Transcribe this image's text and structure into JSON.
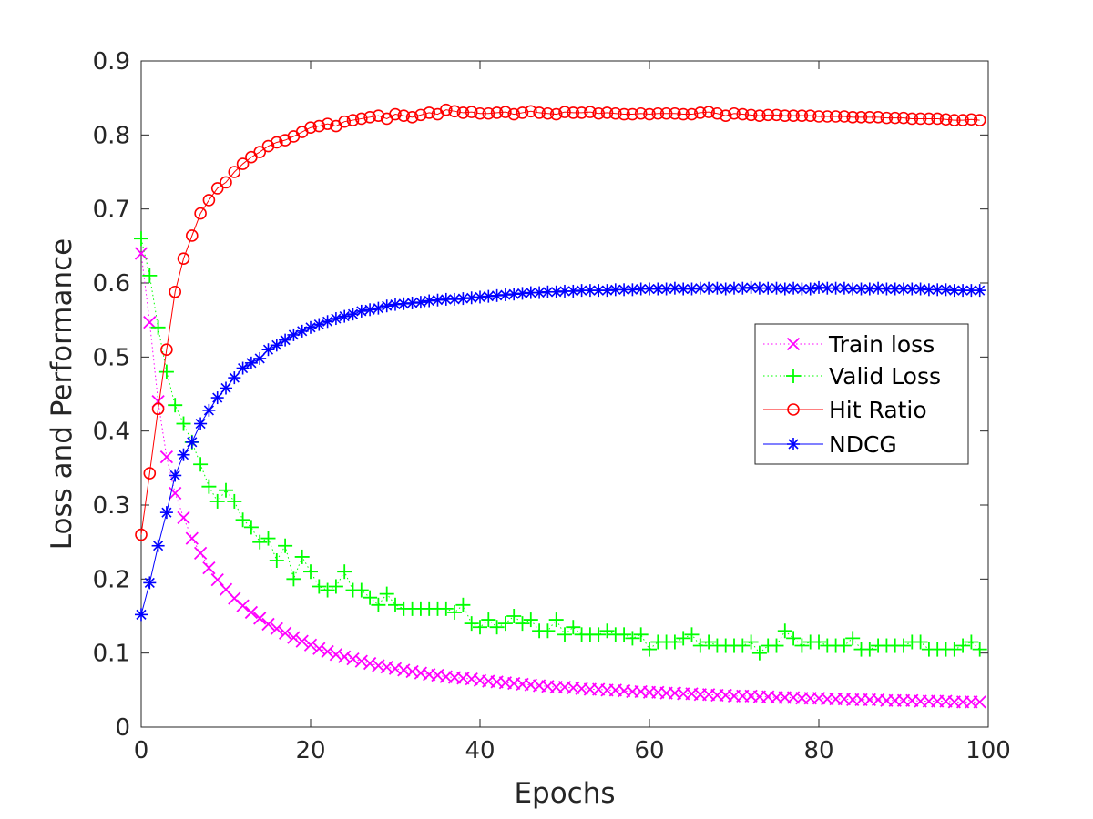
{
  "chart_data": {
    "type": "line",
    "title": "",
    "xlabel": "Epochs",
    "ylabel": "Loss and Performance",
    "xlim": [
      0,
      100
    ],
    "ylim": [
      0,
      0.9
    ],
    "xticks": [
      "0",
      "20",
      "40",
      "60",
      "80",
      "100"
    ],
    "yticks": [
      "0",
      "0.1",
      "0.2",
      "0.3",
      "0.4",
      "0.5",
      "0.6",
      "0.7",
      "0.8",
      "0.9"
    ],
    "grid": false,
    "legend_position": "right",
    "x": [
      0,
      1,
      2,
      3,
      4,
      5,
      6,
      7,
      8,
      9,
      10,
      11,
      12,
      13,
      14,
      15,
      16,
      17,
      18,
      19,
      20,
      21,
      22,
      23,
      24,
      25,
      26,
      27,
      28,
      29,
      30,
      31,
      32,
      33,
      34,
      35,
      36,
      37,
      38,
      39,
      40,
      41,
      42,
      43,
      44,
      45,
      46,
      47,
      48,
      49,
      50,
      51,
      52,
      53,
      54,
      55,
      56,
      57,
      58,
      59,
      60,
      61,
      62,
      63,
      64,
      65,
      66,
      67,
      68,
      69,
      70,
      71,
      72,
      73,
      74,
      75,
      76,
      77,
      78,
      79,
      80,
      81,
      82,
      83,
      84,
      85,
      86,
      87,
      88,
      89,
      90,
      91,
      92,
      93,
      94,
      95,
      96,
      97,
      98,
      99
    ],
    "series": [
      {
        "name": "Train loss",
        "color": "#ff00ff",
        "marker": "x",
        "line": "dotted",
        "values": [
          0.64,
          0.547,
          0.44,
          0.365,
          0.316,
          0.283,
          0.255,
          0.235,
          0.215,
          0.199,
          0.186,
          0.174,
          0.164,
          0.155,
          0.147,
          0.139,
          0.133,
          0.127,
          0.121,
          0.116,
          0.111,
          0.106,
          0.102,
          0.098,
          0.095,
          0.092,
          0.089,
          0.086,
          0.083,
          0.081,
          0.079,
          0.077,
          0.075,
          0.073,
          0.071,
          0.07,
          0.068,
          0.067,
          0.066,
          0.065,
          0.063,
          0.062,
          0.061,
          0.06,
          0.059,
          0.058,
          0.057,
          0.056,
          0.055,
          0.054,
          0.054,
          0.053,
          0.052,
          0.051,
          0.051,
          0.05,
          0.05,
          0.049,
          0.048,
          0.048,
          0.047,
          0.047,
          0.046,
          0.046,
          0.045,
          0.045,
          0.044,
          0.044,
          0.043,
          0.043,
          0.042,
          0.042,
          0.042,
          0.041,
          0.041,
          0.04,
          0.04,
          0.04,
          0.039,
          0.039,
          0.039,
          0.038,
          0.038,
          0.038,
          0.037,
          0.037,
          0.037,
          0.037,
          0.036,
          0.036,
          0.036,
          0.036,
          0.035,
          0.035,
          0.035,
          0.035,
          0.034,
          0.034,
          0.034,
          0.034
        ]
      },
      {
        "name": "Valid Loss",
        "color": "#00ff00",
        "marker": "+",
        "line": "dotted",
        "values": [
          0.66,
          0.61,
          0.54,
          0.48,
          0.435,
          0.41,
          0.385,
          0.355,
          0.325,
          0.305,
          0.32,
          0.305,
          0.28,
          0.27,
          0.25,
          0.255,
          0.225,
          0.245,
          0.2,
          0.23,
          0.21,
          0.19,
          0.185,
          0.19,
          0.21,
          0.185,
          0.185,
          0.175,
          0.165,
          0.18,
          0.165,
          0.16,
          0.16,
          0.16,
          0.16,
          0.16,
          0.16,
          0.155,
          0.165,
          0.14,
          0.135,
          0.145,
          0.135,
          0.14,
          0.15,
          0.14,
          0.145,
          0.13,
          0.13,
          0.145,
          0.125,
          0.135,
          0.125,
          0.125,
          0.125,
          0.13,
          0.125,
          0.125,
          0.12,
          0.125,
          0.105,
          0.115,
          0.115,
          0.115,
          0.12,
          0.125,
          0.11,
          0.115,
          0.11,
          0.11,
          0.11,
          0.11,
          0.115,
          0.1,
          0.11,
          0.11,
          0.13,
          0.12,
          0.11,
          0.115,
          0.115,
          0.11,
          0.11,
          0.11,
          0.12,
          0.105,
          0.105,
          0.11,
          0.11,
          0.11,
          0.11,
          0.115,
          0.115,
          0.105,
          0.105,
          0.105,
          0.105,
          0.11,
          0.115,
          0.105
        ]
      },
      {
        "name": "Hit Ratio",
        "color": "#ff0000",
        "marker": "o",
        "line": "solid",
        "values": [
          0.26,
          0.343,
          0.43,
          0.51,
          0.588,
          0.633,
          0.664,
          0.694,
          0.712,
          0.728,
          0.736,
          0.75,
          0.761,
          0.77,
          0.777,
          0.785,
          0.79,
          0.793,
          0.798,
          0.804,
          0.81,
          0.812,
          0.815,
          0.812,
          0.818,
          0.82,
          0.822,
          0.824,
          0.826,
          0.822,
          0.828,
          0.826,
          0.824,
          0.827,
          0.83,
          0.828,
          0.834,
          0.832,
          0.83,
          0.831,
          0.829,
          0.829,
          0.83,
          0.831,
          0.828,
          0.83,
          0.832,
          0.83,
          0.829,
          0.828,
          0.831,
          0.83,
          0.83,
          0.831,
          0.829,
          0.83,
          0.829,
          0.828,
          0.828,
          0.829,
          0.828,
          0.829,
          0.829,
          0.829,
          0.828,
          0.828,
          0.83,
          0.831,
          0.829,
          0.826,
          0.829,
          0.828,
          0.827,
          0.826,
          0.827,
          0.827,
          0.826,
          0.826,
          0.826,
          0.826,
          0.825,
          0.825,
          0.825,
          0.825,
          0.824,
          0.824,
          0.824,
          0.824,
          0.823,
          0.823,
          0.823,
          0.822,
          0.822,
          0.822,
          0.822,
          0.821,
          0.82,
          0.82,
          0.821,
          0.82
        ]
      },
      {
        "name": "NDCG",
        "color": "#0000ff",
        "marker": "*",
        "line": "solid",
        "values": [
          0.152,
          0.195,
          0.245,
          0.29,
          0.34,
          0.368,
          0.385,
          0.41,
          0.428,
          0.445,
          0.458,
          0.472,
          0.485,
          0.492,
          0.498,
          0.51,
          0.516,
          0.523,
          0.53,
          0.535,
          0.54,
          0.544,
          0.548,
          0.552,
          0.555,
          0.558,
          0.562,
          0.564,
          0.566,
          0.569,
          0.571,
          0.572,
          0.573,
          0.574,
          0.576,
          0.577,
          0.578,
          0.578,
          0.579,
          0.58,
          0.581,
          0.582,
          0.583,
          0.584,
          0.585,
          0.586,
          0.587,
          0.587,
          0.588,
          0.588,
          0.589,
          0.589,
          0.59,
          0.59,
          0.59,
          0.59,
          0.591,
          0.591,
          0.591,
          0.592,
          0.592,
          0.592,
          0.592,
          0.593,
          0.592,
          0.592,
          0.593,
          0.593,
          0.593,
          0.592,
          0.593,
          0.593,
          0.594,
          0.593,
          0.593,
          0.593,
          0.592,
          0.593,
          0.592,
          0.592,
          0.594,
          0.593,
          0.593,
          0.593,
          0.592,
          0.592,
          0.592,
          0.593,
          0.592,
          0.592,
          0.592,
          0.592,
          0.592,
          0.591,
          0.591,
          0.591,
          0.59,
          0.59,
          0.59,
          0.59
        ]
      }
    ]
  }
}
